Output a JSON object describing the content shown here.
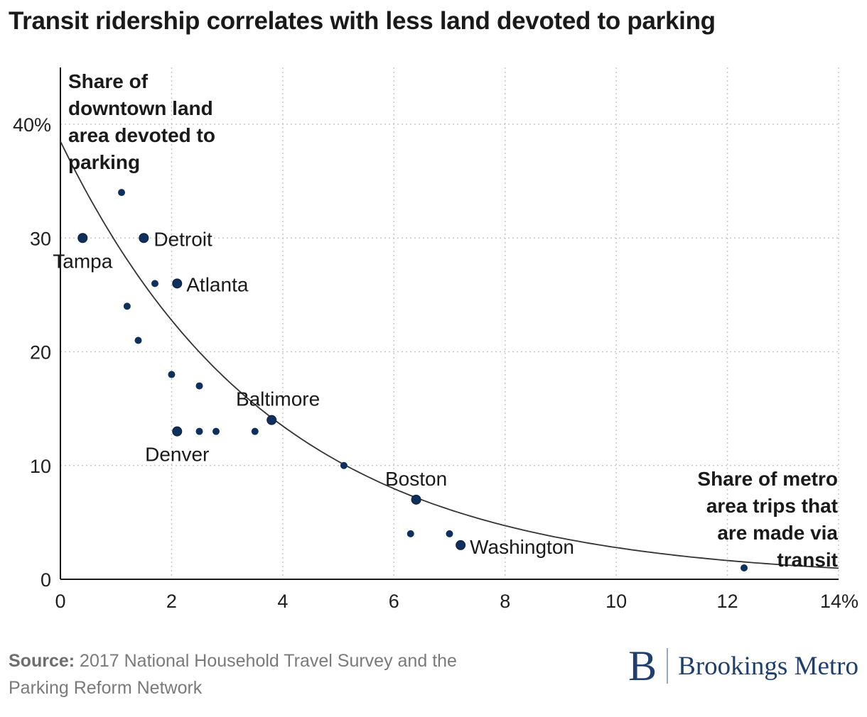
{
  "title": "Transit ridership correlates with less land devoted to parking",
  "chart_data": {
    "type": "scatter",
    "ylabel_lines": [
      "Share of",
      "downtown land",
      "area devoted to",
      "parking"
    ],
    "xlabel_lines": [
      "Share of metro",
      "area trips that",
      "are made via",
      "transit"
    ],
    "xlim": [
      0,
      14
    ],
    "ylim": [
      0,
      45
    ],
    "x_ticks": [
      0,
      2,
      4,
      6,
      8,
      10,
      12,
      14
    ],
    "x_tick_labels": [
      "0",
      "2",
      "4",
      "6",
      "8",
      "10",
      "12",
      "14%"
    ],
    "y_ticks": [
      0,
      10,
      20,
      30,
      40
    ],
    "y_tick_labels": [
      "0",
      "10",
      "20",
      "30",
      "40%"
    ],
    "grid": true,
    "points": [
      {
        "x": 0.4,
        "y": 30,
        "label": "Tampa"
      },
      {
        "x": 1.1,
        "y": 34
      },
      {
        "x": 1.5,
        "y": 30,
        "label": "Detroit"
      },
      {
        "x": 1.7,
        "y": 26
      },
      {
        "x": 2.1,
        "y": 26,
        "label": "Atlanta"
      },
      {
        "x": 1.2,
        "y": 24
      },
      {
        "x": 1.4,
        "y": 21
      },
      {
        "x": 2.0,
        "y": 18
      },
      {
        "x": 2.5,
        "y": 17
      },
      {
        "x": 2.1,
        "y": 13,
        "label": "Denver"
      },
      {
        "x": 2.5,
        "y": 13
      },
      {
        "x": 2.8,
        "y": 13
      },
      {
        "x": 3.5,
        "y": 13
      },
      {
        "x": 3.8,
        "y": 14,
        "label": "Baltimore"
      },
      {
        "x": 5.1,
        "y": 10
      },
      {
        "x": 6.4,
        "y": 7,
        "label": "Boston"
      },
      {
        "x": 6.3,
        "y": 4
      },
      {
        "x": 7.0,
        "y": 4
      },
      {
        "x": 7.2,
        "y": 3,
        "label": "Washington"
      },
      {
        "x": 12.3,
        "y": 1
      }
    ],
    "trendline": {
      "type": "exponential",
      "a": 38.5,
      "b": -0.2625
    },
    "colors": {
      "point": "#0f2f5c",
      "trendline": "#333333",
      "grid": "#c8c8c8",
      "axis": "#1a1a1a"
    }
  },
  "footer": {
    "source_label": "Source:",
    "source_text": "2017 National Household Travel Survey and the Parking Reform Network"
  },
  "brand": {
    "mark": "B",
    "name": "Brookings Metro"
  }
}
